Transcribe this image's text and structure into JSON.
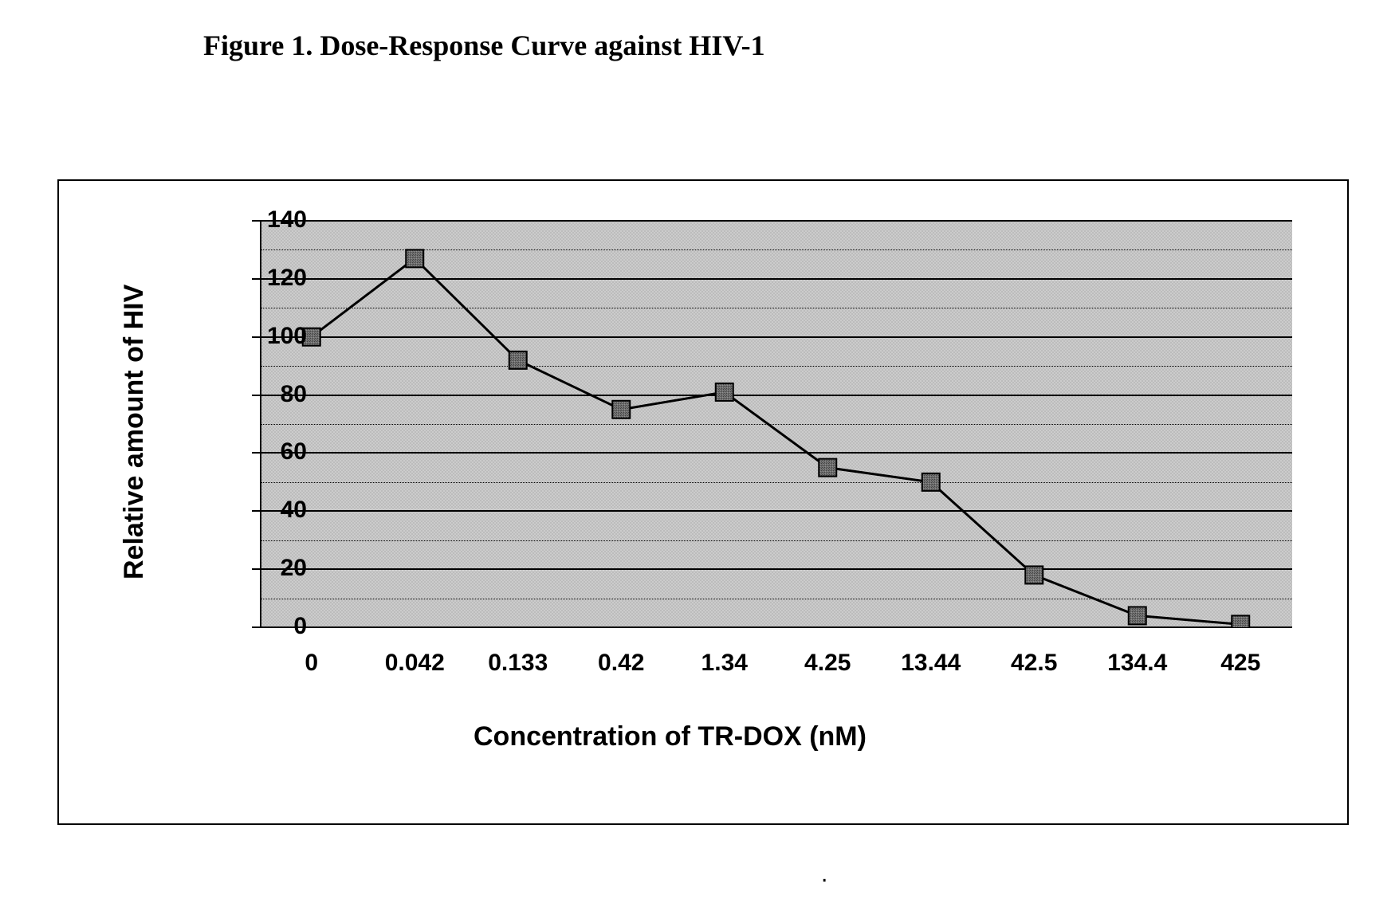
{
  "title": "Figure 1. Dose-Response Curve against HIV-1",
  "title_font": "Times New Roman",
  "title_fontweight": "bold",
  "title_fontsize": 36,
  "chart": {
    "type": "line",
    "x_categories": [
      "0",
      "0.042",
      "0.133",
      "0.42",
      "1.34",
      "4.25",
      "13.44",
      "42.5",
      "134.4",
      "425"
    ],
    "y_values": [
      100,
      127,
      92,
      75,
      81,
      55,
      50,
      18,
      4,
      1
    ],
    "series_color": "#000000",
    "line_width": 3,
    "marker_style": "square",
    "marker_size": 22,
    "marker_fill": "#606060",
    "marker_border": "#000000",
    "marker_pattern": "stipple",
    "y_axis": {
      "title": "Relative amount of HIV",
      "min": 0,
      "max": 140,
      "tick_step": 20,
      "ticks": [
        0,
        20,
        40,
        60,
        80,
        100,
        120,
        140
      ],
      "label_fontsize": 30,
      "label_fontweight": "bold",
      "title_fontsize": 34,
      "title_fontweight": "bold"
    },
    "x_axis": {
      "title": "Concentration of TR-DOX (nM)",
      "label_fontsize": 30,
      "label_fontweight": "bold",
      "title_fontsize": 34,
      "title_fontweight": "bold"
    },
    "plot_background_color": "#cccccc",
    "plot_pattern": "stipple",
    "grid_color": "#000000",
    "grid_major_width": 2,
    "grid_minor_style": "dotted",
    "container_background": "#ffffff",
    "container_border_color": "#000000",
    "container_border_width": 2
  }
}
